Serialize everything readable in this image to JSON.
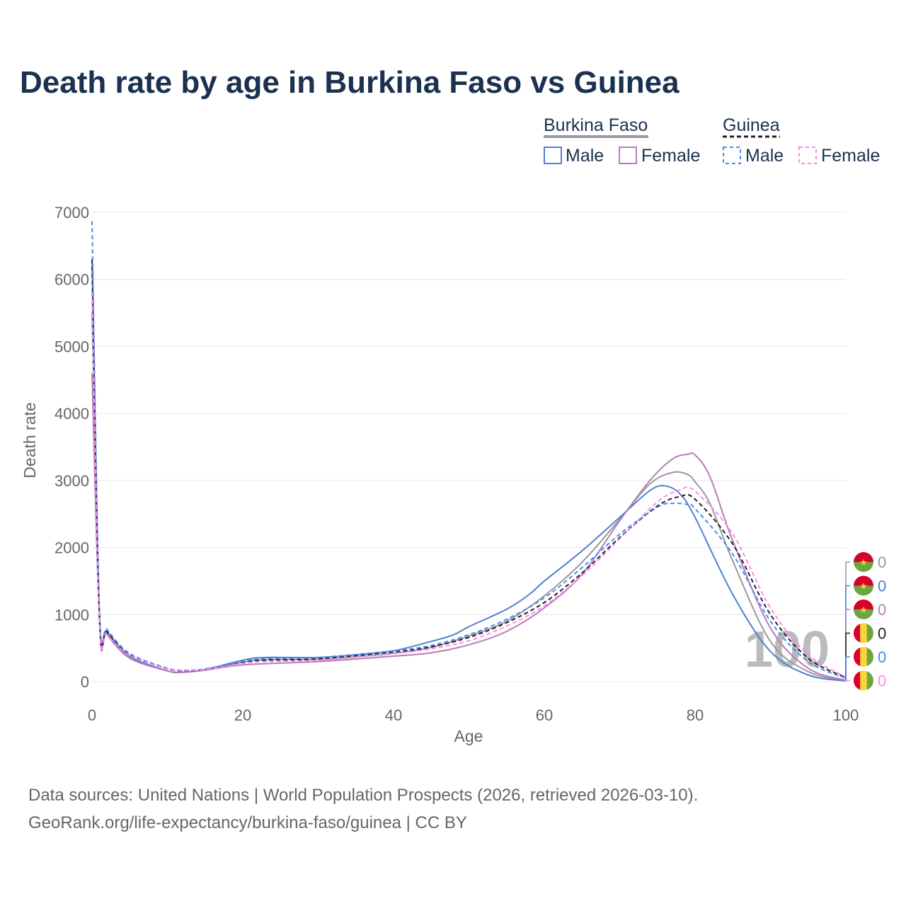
{
  "title": "Death rate by age in Burkina Faso vs Guinea",
  "legend": {
    "groups": [
      {
        "name": "Burkina Faso",
        "items": [
          "Male",
          "Female"
        ]
      },
      {
        "name": "Guinea",
        "items": [
          "Male",
          "Female"
        ]
      }
    ]
  },
  "source_line1": "Data sources: United Nations | World Population Prospects (2026, retrieved 2026-03-10).",
  "source_line2": "GeoRank.org/life-expectancy/burkina-faso/guinea | CC BY",
  "chart_data": {
    "type": "line",
    "title": "Death rate by age in Burkina Faso vs Guinea",
    "xlabel": "Age",
    "ylabel": "Death rate",
    "xlim": [
      0,
      100
    ],
    "ylim": [
      0,
      7000
    ],
    "xticks": [
      0,
      20,
      40,
      60,
      80,
      100
    ],
    "yticks": [
      0,
      1000,
      2000,
      3000,
      4000,
      5000,
      6000,
      7000
    ],
    "grid": true,
    "legend_position": "top-right",
    "current_age_label": "100",
    "end_labels": [
      "0",
      "0",
      "0",
      "0",
      "0",
      "0"
    ],
    "series": [
      {
        "name": "Burkina Faso",
        "color": "#999999",
        "dash": false,
        "flag": "burkina-faso",
        "x": [
          0,
          1,
          2,
          5,
          10,
          12,
          15,
          20,
          23,
          30,
          35,
          40,
          45,
          50,
          55,
          60,
          65,
          70,
          74,
          77,
          79,
          80,
          82,
          85,
          90,
          95,
          100
        ],
        "y": [
          5500,
          960,
          720,
          360,
          160,
          140,
          175,
          290,
          330,
          330,
          370,
          420,
          510,
          680,
          900,
          1280,
          1780,
          2420,
          2950,
          3120,
          3090,
          2980,
          2650,
          1800,
          600,
          150,
          15
        ]
      },
      {
        "name": "Burkina Faso Male",
        "color": "#5080d0",
        "dash": false,
        "flag": "burkina-faso",
        "x": [
          0,
          1,
          2,
          5,
          10,
          12,
          15,
          20,
          23,
          30,
          35,
          40,
          45,
          48,
          50,
          55,
          58,
          60,
          65,
          70,
          74,
          76,
          78,
          80,
          85,
          90,
          95,
          100
        ],
        "y": [
          6300,
          1000,
          750,
          380,
          160,
          140,
          180,
          320,
          360,
          360,
          400,
          460,
          600,
          700,
          820,
          1080,
          1300,
          1500,
          1950,
          2450,
          2850,
          2920,
          2800,
          2450,
          1300,
          450,
          100,
          10
        ]
      },
      {
        "name": "Burkina Faso Female",
        "color": "#b87cb8",
        "dash": false,
        "flag": "burkina-faso",
        "x": [
          0,
          1,
          2,
          5,
          10,
          12,
          15,
          20,
          30,
          40,
          45,
          50,
          55,
          60,
          65,
          70,
          74,
          77,
          79,
          80,
          82,
          85,
          90,
          95,
          100
        ],
        "y": [
          4600,
          900,
          700,
          350,
          160,
          140,
          170,
          250,
          300,
          380,
          430,
          550,
          750,
          1100,
          1600,
          2400,
          3000,
          3320,
          3390,
          3380,
          3050,
          2100,
          800,
          200,
          20
        ]
      },
      {
        "name": "Guinea",
        "color": "#222222",
        "dash": true,
        "flag": "guinea",
        "x": [
          0,
          1,
          2,
          5,
          10,
          12,
          15,
          20,
          23,
          30,
          40,
          45,
          50,
          55,
          60,
          65,
          70,
          75,
          78,
          80,
          85,
          90,
          95,
          100
        ],
        "y": [
          6300,
          900,
          740,
          400,
          190,
          160,
          180,
          290,
          320,
          340,
          440,
          520,
          660,
          880,
          1180,
          1620,
          2150,
          2620,
          2760,
          2720,
          2050,
          1000,
          350,
          60
        ]
      },
      {
        "name": "Guinea Male",
        "color": "#4a8cf0",
        "dash": true,
        "flag": "guinea",
        "x": [
          0,
          1,
          2,
          5,
          10,
          12,
          15,
          20,
          23,
          30,
          40,
          45,
          50,
          55,
          60,
          65,
          70,
          75,
          77,
          79,
          80,
          85,
          90,
          95,
          100
        ],
        "y": [
          6870,
          1000,
          780,
          420,
          200,
          170,
          190,
          300,
          340,
          360,
          460,
          540,
          700,
          930,
          1250,
          1700,
          2200,
          2600,
          2660,
          2640,
          2580,
          1900,
          900,
          300,
          50
        ]
      },
      {
        "name": "Guinea Female",
        "color": "#ff88ee",
        "dash": true,
        "flag": "guinea",
        "x": [
          0,
          1,
          2,
          5,
          10,
          12,
          15,
          20,
          23,
          30,
          40,
          45,
          50,
          55,
          60,
          65,
          70,
          75,
          78,
          80,
          85,
          90,
          95,
          100
        ],
        "y": [
          5800,
          850,
          700,
          390,
          190,
          165,
          180,
          270,
          300,
          320,
          420,
          490,
          610,
          830,
          1130,
          1580,
          2130,
          2680,
          2860,
          2840,
          2200,
          1100,
          400,
          70
        ]
      }
    ]
  }
}
